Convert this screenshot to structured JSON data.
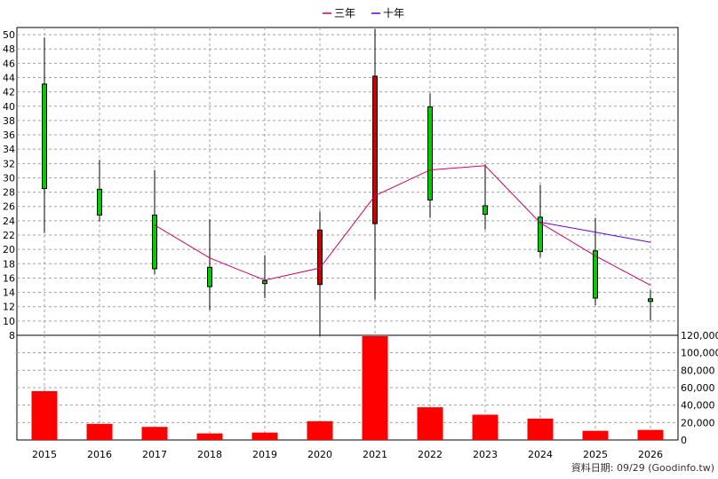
{
  "chart_data": {
    "type": "candlestick+line+bar",
    "legend": [
      {
        "name": "三年",
        "color": "#cc0066"
      },
      {
        "name": "十年",
        "color": "#6600cc"
      }
    ],
    "legend_position": "top-center",
    "grid": true,
    "years": [
      "2015",
      "2016",
      "2017",
      "2018",
      "2019",
      "2020",
      "2021",
      "2022",
      "2023",
      "2024",
      "2025",
      "2026"
    ],
    "price": {
      "ylim": [
        8,
        51
      ],
      "ticks": [
        8,
        10,
        12,
        14,
        16,
        18,
        20,
        22,
        24,
        26,
        28,
        30,
        32,
        34,
        36,
        38,
        40,
        42,
        44,
        46,
        48,
        50
      ],
      "candles": [
        {
          "year": "2015",
          "open": 43.1,
          "close": 28.5,
          "high": 49.6,
          "low": 22.3
        },
        {
          "year": "2016",
          "open": 28.4,
          "close": 24.8,
          "high": 32.5,
          "low": 23.9
        },
        {
          "year": "2017",
          "open": 24.8,
          "close": 17.3,
          "high": 31.1,
          "low": 16.5
        },
        {
          "year": "2018",
          "open": 17.5,
          "close": 14.8,
          "high": 24.2,
          "low": 11.5
        },
        {
          "year": "2019",
          "open": 15.6,
          "close": 15.6,
          "high": 19.2,
          "low": 13.2
        },
        {
          "year": "2020",
          "open": 15.1,
          "close": 22.7,
          "high": 25.3,
          "low": 7.9
        },
        {
          "year": "2021",
          "open": 23.6,
          "close": 44.2,
          "high": 50.8,
          "low": 13.0
        },
        {
          "year": "2022",
          "open": 39.9,
          "close": 26.9,
          "high": 41.8,
          "low": 24.4
        },
        {
          "year": "2023",
          "open": 26.1,
          "close": 24.9,
          "high": 31.9,
          "low": 22.8
        },
        {
          "year": "2024",
          "open": 24.5,
          "close": 19.7,
          "high": 29.0,
          "low": 18.9
        },
        {
          "year": "2025",
          "open": 19.8,
          "close": 13.2,
          "high": 24.4,
          "low": 12.2
        },
        {
          "year": "2026",
          "open": 13.1,
          "close": 12.8,
          "high": 14.3,
          "low": 10.1
        }
      ],
      "series": [
        {
          "name": "三年",
          "color": "#cc0066",
          "points": [
            {
              "year": "2017",
              "value": 23.4
            },
            {
              "year": "2018",
              "value": 18.8
            },
            {
              "year": "2019",
              "value": 15.7
            },
            {
              "year": "2020",
              "value": 17.4
            },
            {
              "year": "2021",
              "value": 27.5
            },
            {
              "year": "2022",
              "value": 31.1
            },
            {
              "year": "2023",
              "value": 31.7
            },
            {
              "year": "2024",
              "value": 23.7
            },
            {
              "year": "2025",
              "value": 19.1
            },
            {
              "year": "2026",
              "value": 15.0
            }
          ]
        },
        {
          "name": "十年",
          "color": "#6600cc",
          "points": [
            {
              "year": "2024",
              "value": 23.8
            },
            {
              "year": "2025",
              "value": 22.4
            },
            {
              "year": "2026",
              "value": 21.0
            }
          ]
        }
      ]
    },
    "volume": {
      "ylim": [
        0,
        120000
      ],
      "ticks": [
        0,
        20000,
        40000,
        60000,
        80000,
        100000,
        120000
      ],
      "tick_labels": [
        "0",
        "20,000",
        "40,000",
        "60,000",
        "80,000",
        "100,000",
        "120,000"
      ],
      "color": "#ff0000",
      "values": [
        56000,
        18500,
        15000,
        7500,
        8500,
        21500,
        123000,
        37500,
        29000,
        24500,
        10500,
        11500
      ]
    }
  },
  "footer": {
    "source": "資料日期: 09/29 (Goodinfo.tw)"
  }
}
